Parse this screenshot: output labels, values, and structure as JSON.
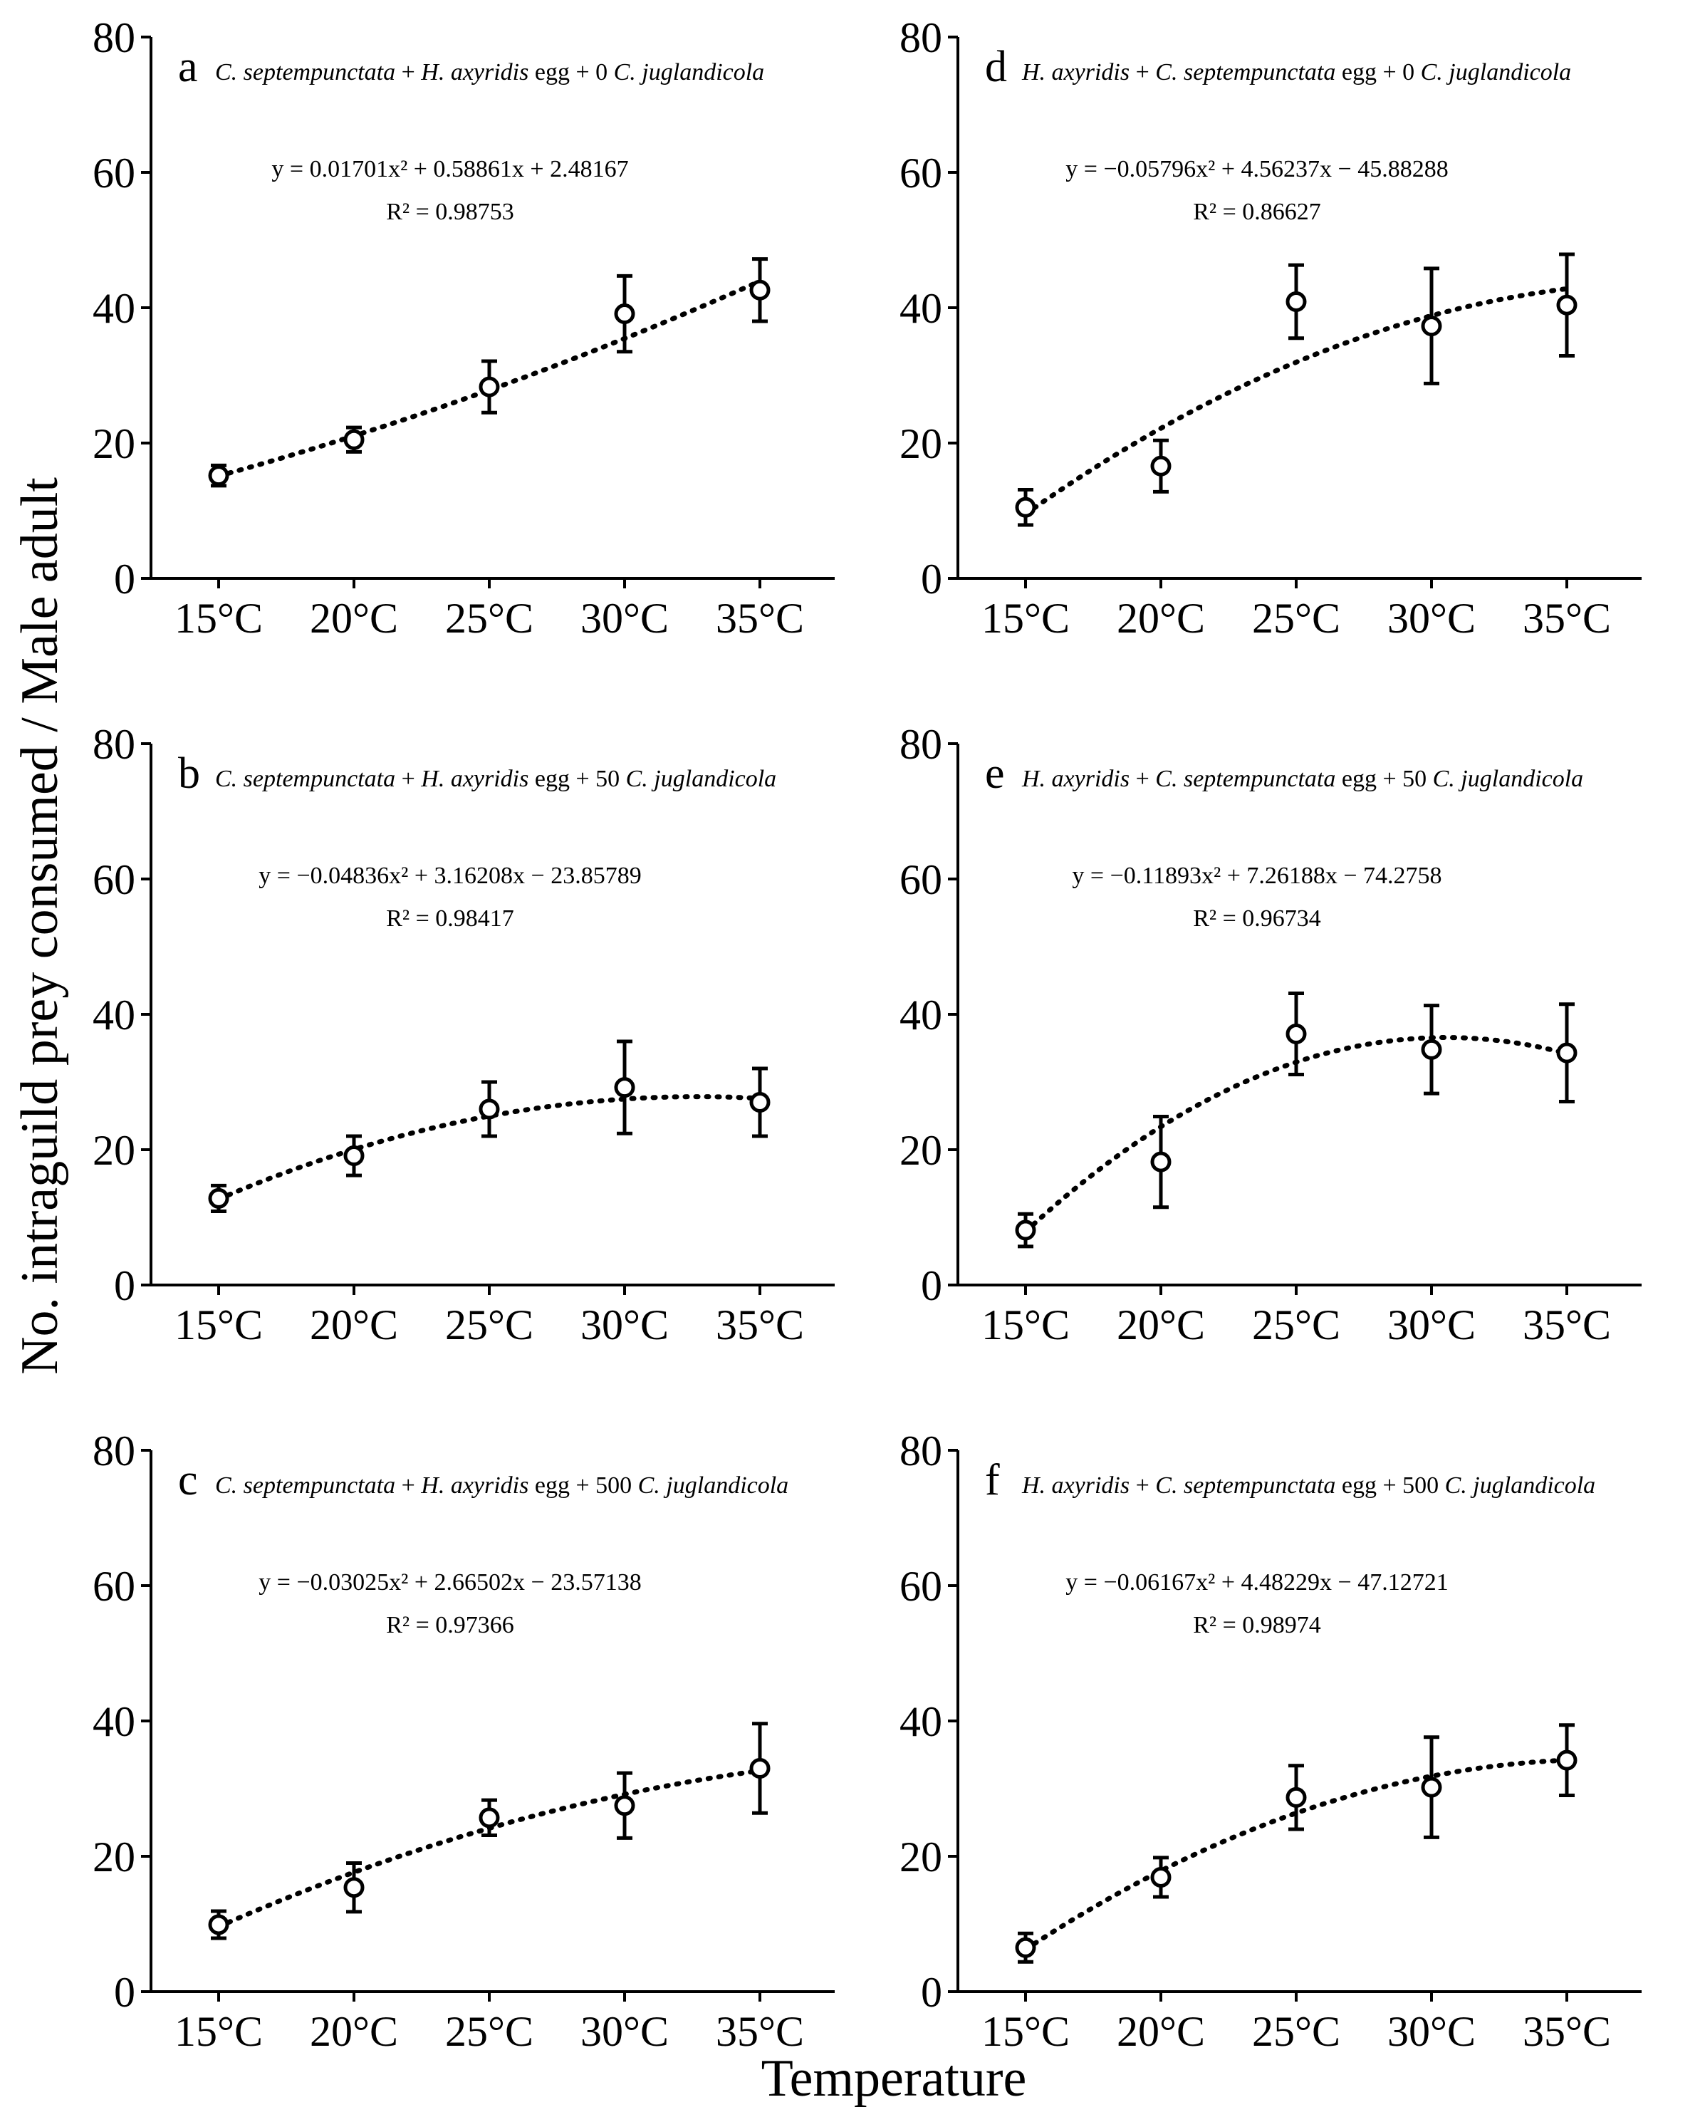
{
  "figure": {
    "ylabel": "No. intraguild prey consumed / Male adult",
    "xlabel": "Temperature"
  },
  "chart_data": [
    {
      "type": "scatter",
      "panel": "a",
      "title_parts": [
        {
          "text": "C. septempunctata",
          "italic": true
        },
        {
          "text": " + ",
          "italic": false
        },
        {
          "text": "H. axyridis",
          "italic": true
        },
        {
          "text": " egg + 0 ",
          "italic": false
        },
        {
          "text": "C. juglandicola",
          "italic": true
        }
      ],
      "equation": "y = 0.01701x² + 0.58861x + 2.48167",
      "r2": "R² = 0.98753",
      "categories": [
        "15°C",
        "20°C",
        "25°C",
        "30°C",
        "35°C"
      ],
      "values": [
        15.2,
        20.5,
        28.3,
        39.1,
        42.6
      ],
      "errors": [
        1.5,
        1.8,
        3.8,
        5.6,
        4.6
      ],
      "fit": {
        "a": 0.01701,
        "b": 0.58861,
        "c": 2.48167
      },
      "ylim": [
        0,
        80
      ],
      "yticks": [
        0,
        20,
        40,
        60,
        80
      ]
    },
    {
      "type": "scatter",
      "panel": "b",
      "title_parts": [
        {
          "text": "C. septempunctata",
          "italic": true
        },
        {
          "text": " + ",
          "italic": false
        },
        {
          "text": "H. axyridis",
          "italic": true
        },
        {
          "text": " egg + 50 ",
          "italic": false
        },
        {
          "text": "C. juglandicola",
          "italic": true
        }
      ],
      "equation": "y = −0.04836x² + 3.16208x − 23.85789",
      "r2": "R² = 0.98417",
      "categories": [
        "15°C",
        "20°C",
        "25°C",
        "30°C",
        "35°C"
      ],
      "values": [
        12.8,
        19.1,
        26.0,
        29.2,
        27.0
      ],
      "errors": [
        1.9,
        2.9,
        4.0,
        6.8,
        5.0
      ],
      "fit": {
        "a": -0.04836,
        "b": 3.16208,
        "c": -23.85789
      },
      "ylim": [
        0,
        80
      ],
      "yticks": [
        0,
        20,
        40,
        60,
        80
      ]
    },
    {
      "type": "scatter",
      "panel": "c",
      "title_parts": [
        {
          "text": "C. septempunctata",
          "italic": true
        },
        {
          "text": " + ",
          "italic": false
        },
        {
          "text": "H. axyridis",
          "italic": true
        },
        {
          "text": " egg + 500 ",
          "italic": false
        },
        {
          "text": "C. juglandicola",
          "italic": true
        }
      ],
      "equation": "y = −0.03025x² + 2.66502x − 23.57138",
      "r2": "R² = 0.97366",
      "categories": [
        "15°C",
        "20°C",
        "25°C",
        "30°C",
        "35°C"
      ],
      "values": [
        9.9,
        15.4,
        25.7,
        27.5,
        33.0
      ],
      "errors": [
        2.0,
        3.6,
        2.6,
        4.8,
        6.6
      ],
      "fit": {
        "a": -0.03025,
        "b": 2.66502,
        "c": -23.57138
      },
      "ylim": [
        0,
        80
      ],
      "yticks": [
        0,
        20,
        40,
        60,
        80
      ]
    },
    {
      "type": "scatter",
      "panel": "d",
      "title_parts": [
        {
          "text": "H. axyridis",
          "italic": true
        },
        {
          "text": " + ",
          "italic": false
        },
        {
          "text": "C. septempunctata",
          "italic": true
        },
        {
          "text": " egg + 0 ",
          "italic": false
        },
        {
          "text": "C. juglandicola",
          "italic": true
        }
      ],
      "equation": "y = −0.05796x² + 4.56237x − 45.88288",
      "r2": "R² = 0.86627",
      "categories": [
        "15°C",
        "20°C",
        "25°C",
        "30°C",
        "35°C"
      ],
      "values": [
        10.5,
        16.6,
        40.9,
        37.3,
        40.4
      ],
      "errors": [
        2.6,
        3.8,
        5.4,
        8.5,
        7.5
      ],
      "fit": {
        "a": -0.05796,
        "b": 4.56237,
        "c": -45.88288
      },
      "ylim": [
        0,
        80
      ],
      "yticks": [
        0,
        20,
        40,
        60,
        80
      ]
    },
    {
      "type": "scatter",
      "panel": "e",
      "title_parts": [
        {
          "text": "H. axyridis",
          "italic": true
        },
        {
          "text": " + ",
          "italic": false
        },
        {
          "text": "C. septempunctata",
          "italic": true
        },
        {
          "text": " egg + 50 ",
          "italic": false
        },
        {
          "text": "C. juglandicola",
          "italic": true
        }
      ],
      "equation": "y = −0.11893x² + 7.26188x − 74.2758",
      "r2": "R² = 0.96734",
      "categories": [
        "15°C",
        "20°C",
        "25°C",
        "30°C",
        "35°C"
      ],
      "values": [
        8.1,
        18.2,
        37.1,
        34.8,
        34.3
      ],
      "errors": [
        2.4,
        6.7,
        6.0,
        6.5,
        7.2
      ],
      "fit": {
        "a": -0.11893,
        "b": 7.26188,
        "c": -74.2758
      },
      "ylim": [
        0,
        80
      ],
      "yticks": [
        0,
        20,
        40,
        60,
        80
      ]
    },
    {
      "type": "scatter",
      "panel": "f",
      "title_parts": [
        {
          "text": "H. axyridis",
          "italic": true
        },
        {
          "text": " + ",
          "italic": false
        },
        {
          "text": "C. septempunctata",
          "italic": true
        },
        {
          "text": " egg + 500 ",
          "italic": false
        },
        {
          "text": "C. juglandicola",
          "italic": true
        }
      ],
      "equation": "y = −0.06167x² + 4.48229x − 47.12721",
      "r2": "R² = 0.98974",
      "categories": [
        "15°C",
        "20°C",
        "25°C",
        "30°C",
        "35°C"
      ],
      "values": [
        6.5,
        16.9,
        28.7,
        30.2,
        34.2
      ],
      "errors": [
        2.1,
        2.9,
        4.7,
        7.4,
        5.2
      ],
      "fit": {
        "a": -0.06167,
        "b": 4.48229,
        "c": -47.12721
      },
      "ylim": [
        0,
        80
      ],
      "yticks": [
        0,
        20,
        40,
        60,
        80
      ]
    }
  ]
}
